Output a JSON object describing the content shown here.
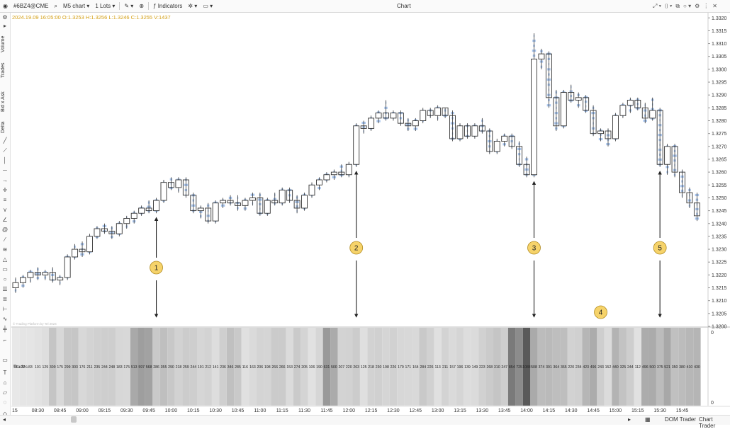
{
  "toolbar": {
    "symbol": "#6BZ4@CME",
    "chart_type": "M5 chart",
    "lots": "1 Lots",
    "indicators": "Indicators",
    "window_title": "Chart"
  },
  "left_toolbar": {
    "labels": [
      "Volume",
      "Trades",
      "Bid x Ask",
      "Delta"
    ]
  },
  "ohlc_line": "2024.19.09 16:05:00 O:1.3253 H:1.3256 L:1.3246 C:1.3255 V:1437",
  "watermark": "© Trading Platform by Tel 2024",
  "statusbar": {
    "dom_trader": "DOM Trader",
    "chart_trader": "Chart Trader"
  },
  "colors": {
    "candle_up_fill": "#ffffff",
    "candle_stroke": "#333333",
    "cluster": "#8fb4e8",
    "annotation_fill": "#f6d36a",
    "annotation_stroke": "#b08a20"
  },
  "chart_data": {
    "type": "candlestick",
    "y_ticks": [
      "1.3320",
      "1.3315",
      "1.3310",
      "1.3305",
      "1.3300",
      "1.3295",
      "1.3290",
      "1.3285",
      "1.3280",
      "1.3275",
      "1.3270",
      "1.3265",
      "1.3260",
      "1.3255",
      "1.3250",
      "1.3245",
      "1.3240",
      "1.3235",
      "1.3230",
      "1.3225",
      "1.3220",
      "1.3215",
      "1.3210",
      "1.3205",
      "1.3200"
    ],
    "ylim": [
      1.32,
      1.3322
    ],
    "x_ticks": [
      "15",
      "08:30",
      "08:45",
      "09:00",
      "09:15",
      "09:30",
      "09:45",
      "10:00",
      "10:15",
      "10:30",
      "10:45",
      "11:00",
      "11:15",
      "11:30",
      "11:45",
      "12:00",
      "12:15",
      "12:30",
      "12:45",
      "13:00",
      "13:15",
      "13:30",
      "13:45",
      "14:00",
      "14:15",
      "14:30",
      "14:45",
      "15:00",
      "15:15",
      "15:30",
      "15:45"
    ],
    "first_time": "08:15",
    "series_label": "Trades",
    "subpanel_ticks": [
      "0",
      "0"
    ],
    "candles": [
      {
        "t": "08:15",
        "o": 1.3215,
        "h": 1.3219,
        "l": 1.3213,
        "c": 1.3217,
        "tr": 55
      },
      {
        "t": "08:20",
        "o": 1.3217,
        "h": 1.322,
        "l": 1.3215,
        "c": 1.3219,
        "tr": 77
      },
      {
        "t": "08:25",
        "o": 1.3219,
        "h": 1.3222,
        "l": 1.3217,
        "c": 1.3221,
        "tr": 83
      },
      {
        "t": "08:30",
        "o": 1.3221,
        "h": 1.3223,
        "l": 1.3218,
        "c": 1.322,
        "tr": 101
      },
      {
        "t": "08:35",
        "o": 1.322,
        "h": 1.3222,
        "l": 1.3218,
        "c": 1.3221,
        "tr": 129
      },
      {
        "t": "08:40",
        "o": 1.3221,
        "h": 1.3223,
        "l": 1.3217,
        "c": 1.3218,
        "tr": 309
      },
      {
        "t": "08:45",
        "o": 1.3218,
        "h": 1.322,
        "l": 1.3216,
        "c": 1.3219,
        "tr": 175
      },
      {
        "t": "08:50",
        "o": 1.3219,
        "h": 1.3228,
        "l": 1.3218,
        "c": 1.3227,
        "tr": 299
      },
      {
        "t": "08:55",
        "o": 1.3227,
        "h": 1.3232,
        "l": 1.3226,
        "c": 1.323,
        "tr": 303
      },
      {
        "t": "09:00",
        "o": 1.323,
        "h": 1.3233,
        "l": 1.3227,
        "c": 1.3229,
        "tr": 176
      },
      {
        "t": "09:05",
        "o": 1.3229,
        "h": 1.3236,
        "l": 1.3228,
        "c": 1.3235,
        "tr": 211
      },
      {
        "t": "09:10",
        "o": 1.3235,
        "h": 1.3239,
        "l": 1.3234,
        "c": 1.3238,
        "tr": 235
      },
      {
        "t": "09:15",
        "o": 1.3238,
        "h": 1.324,
        "l": 1.3236,
        "c": 1.3237,
        "tr": 244
      },
      {
        "t": "09:20",
        "o": 1.3237,
        "h": 1.3239,
        "l": 1.3234,
        "c": 1.3236,
        "tr": 248
      },
      {
        "t": "09:25",
        "o": 1.3236,
        "h": 1.3241,
        "l": 1.3235,
        "c": 1.324,
        "tr": 183
      },
      {
        "t": "09:30",
        "o": 1.324,
        "h": 1.3243,
        "l": 1.3238,
        "c": 1.3242,
        "tr": 175
      },
      {
        "t": "09:35",
        "o": 1.3242,
        "h": 1.3245,
        "l": 1.324,
        "c": 1.3244,
        "tr": 513
      },
      {
        "t": "09:40",
        "o": 1.3244,
        "h": 1.3247,
        "l": 1.3243,
        "c": 1.3246,
        "tr": 597
      },
      {
        "t": "09:45",
        "o": 1.3246,
        "h": 1.3249,
        "l": 1.3244,
        "c": 1.3245,
        "tr": 568
      },
      {
        "t": "09:50",
        "o": 1.3245,
        "h": 1.325,
        "l": 1.3244,
        "c": 1.3249,
        "tr": 286
      },
      {
        "t": "09:55",
        "o": 1.3249,
        "h": 1.3257,
        "l": 1.3248,
        "c": 1.3256,
        "tr": 355
      },
      {
        "t": "10:00",
        "o": 1.3256,
        "h": 1.3258,
        "l": 1.3253,
        "c": 1.3254,
        "tr": 290
      },
      {
        "t": "10:05",
        "o": 1.3254,
        "h": 1.3258,
        "l": 1.3252,
        "c": 1.3257,
        "tr": 218
      },
      {
        "t": "10:10",
        "o": 1.3257,
        "h": 1.3258,
        "l": 1.325,
        "c": 1.3251,
        "tr": 259
      },
      {
        "t": "10:15",
        "o": 1.3251,
        "h": 1.3252,
        "l": 1.3244,
        "c": 1.3245,
        "tr": 244
      },
      {
        "t": "10:20",
        "o": 1.3245,
        "h": 1.3247,
        "l": 1.3242,
        "c": 1.3246,
        "tr": 191
      },
      {
        "t": "10:25",
        "o": 1.3246,
        "h": 1.3248,
        "l": 1.324,
        "c": 1.3241,
        "tr": 212
      },
      {
        "t": "10:30",
        "o": 1.3241,
        "h": 1.3249,
        "l": 1.324,
        "c": 1.3248,
        "tr": 141
      },
      {
        "t": "10:35",
        "o": 1.3248,
        "h": 1.325,
        "l": 1.3246,
        "c": 1.3249,
        "tr": 236
      },
      {
        "t": "10:40",
        "o": 1.3249,
        "h": 1.3251,
        "l": 1.3247,
        "c": 1.3248,
        "tr": 346
      },
      {
        "t": "10:45",
        "o": 1.3248,
        "h": 1.3251,
        "l": 1.3245,
        "c": 1.3247,
        "tr": 285
      },
      {
        "t": "10:50",
        "o": 1.3247,
        "h": 1.325,
        "l": 1.3245,
        "c": 1.3249,
        "tr": 116
      },
      {
        "t": "10:55",
        "o": 1.3249,
        "h": 1.3252,
        "l": 1.3247,
        "c": 1.325,
        "tr": 163
      },
      {
        "t": "11:00",
        "o": 1.325,
        "h": 1.3252,
        "l": 1.3243,
        "c": 1.3244,
        "tr": 206
      },
      {
        "t": "11:05",
        "o": 1.3244,
        "h": 1.325,
        "l": 1.3243,
        "c": 1.3249,
        "tr": 198
      },
      {
        "t": "11:10",
        "o": 1.3249,
        "h": 1.3252,
        "l": 1.3247,
        "c": 1.3248,
        "tr": 266
      },
      {
        "t": "11:15",
        "o": 1.3248,
        "h": 1.3254,
        "l": 1.3247,
        "c": 1.3253,
        "tr": 266
      },
      {
        "t": "11:20",
        "o": 1.3253,
        "h": 1.3254,
        "l": 1.3248,
        "c": 1.3249,
        "tr": 153
      },
      {
        "t": "11:25",
        "o": 1.3249,
        "h": 1.3251,
        "l": 1.3244,
        "c": 1.3246,
        "tr": 274
      },
      {
        "t": "11:30",
        "o": 1.3246,
        "h": 1.3252,
        "l": 1.3245,
        "c": 1.3251,
        "tr": 205
      },
      {
        "t": "11:35",
        "o": 1.3251,
        "h": 1.3256,
        "l": 1.325,
        "c": 1.3255,
        "tr": 106
      },
      {
        "t": "11:40",
        "o": 1.3255,
        "h": 1.3258,
        "l": 1.3253,
        "c": 1.3257,
        "tr": 190
      },
      {
        "t": "11:45",
        "o": 1.3257,
        "h": 1.326,
        "l": 1.3256,
        "c": 1.3259,
        "tr": 631
      },
      {
        "t": "11:50",
        "o": 1.3259,
        "h": 1.3261,
        "l": 1.3257,
        "c": 1.326,
        "tr": 500
      },
      {
        "t": "11:55",
        "o": 1.326,
        "h": 1.3263,
        "l": 1.3258,
        "c": 1.3259,
        "tr": 207
      },
      {
        "t": "12:00",
        "o": 1.3259,
        "h": 1.3264,
        "l": 1.3258,
        "c": 1.3263,
        "tr": 220
      },
      {
        "t": "12:05",
        "o": 1.3263,
        "h": 1.3279,
        "l": 1.3262,
        "c": 1.3278,
        "tr": 263
      },
      {
        "t": "12:10",
        "o": 1.3278,
        "h": 1.328,
        "l": 1.3275,
        "c": 1.3277,
        "tr": 125
      },
      {
        "t": "12:15",
        "o": 1.3277,
        "h": 1.3282,
        "l": 1.3276,
        "c": 1.3281,
        "tr": 218
      },
      {
        "t": "12:20",
        "o": 1.3281,
        "h": 1.3284,
        "l": 1.3279,
        "c": 1.3283,
        "tr": 230
      },
      {
        "t": "12:25",
        "o": 1.3283,
        "h": 1.3288,
        "l": 1.328,
        "c": 1.3281,
        "tr": 198
      },
      {
        "t": "12:30",
        "o": 1.3281,
        "h": 1.3284,
        "l": 1.328,
        "c": 1.3283,
        "tr": 226
      },
      {
        "t": "12:35",
        "o": 1.3283,
        "h": 1.3284,
        "l": 1.3278,
        "c": 1.3279,
        "tr": 179
      },
      {
        "t": "12:40",
        "o": 1.3279,
        "h": 1.3281,
        "l": 1.3276,
        "c": 1.3278,
        "tr": 171
      },
      {
        "t": "12:45",
        "o": 1.3278,
        "h": 1.3281,
        "l": 1.3276,
        "c": 1.328,
        "tr": 164
      },
      {
        "t": "12:50",
        "o": 1.328,
        "h": 1.3285,
        "l": 1.3279,
        "c": 1.3284,
        "tr": 284
      },
      {
        "t": "12:55",
        "o": 1.3284,
        "h": 1.3285,
        "l": 1.3281,
        "c": 1.3282,
        "tr": 226
      },
      {
        "t": "13:00",
        "o": 1.3282,
        "h": 1.3286,
        "l": 1.328,
        "c": 1.3285,
        "tr": 113
      },
      {
        "t": "13:05",
        "o": 1.3285,
        "h": 1.3285,
        "l": 1.3281,
        "c": 1.3282,
        "tr": 211
      },
      {
        "t": "13:10",
        "o": 1.3282,
        "h": 1.3284,
        "l": 1.3272,
        "c": 1.3273,
        "tr": 157
      },
      {
        "t": "13:15",
        "o": 1.3273,
        "h": 1.3279,
        "l": 1.3272,
        "c": 1.3278,
        "tr": 196
      },
      {
        "t": "13:20",
        "o": 1.3278,
        "h": 1.3279,
        "l": 1.3273,
        "c": 1.3274,
        "tr": 139
      },
      {
        "t": "13:25",
        "o": 1.3274,
        "h": 1.3279,
        "l": 1.3273,
        "c": 1.3278,
        "tr": 149
      },
      {
        "t": "13:30",
        "o": 1.3278,
        "h": 1.3281,
        "l": 1.3275,
        "c": 1.3276,
        "tr": 223
      },
      {
        "t": "13:35",
        "o": 1.3276,
        "h": 1.3277,
        "l": 1.3267,
        "c": 1.3268,
        "tr": 268
      },
      {
        "t": "13:40",
        "o": 1.3268,
        "h": 1.3273,
        "l": 1.3267,
        "c": 1.3272,
        "tr": 310
      },
      {
        "t": "13:45",
        "o": 1.3272,
        "h": 1.3275,
        "l": 1.327,
        "c": 1.3274,
        "tr": 247
      },
      {
        "t": "13:50",
        "o": 1.3274,
        "h": 1.3275,
        "l": 1.3269,
        "c": 1.327,
        "tr": 854
      },
      {
        "t": "13:55",
        "o": 1.327,
        "h": 1.3272,
        "l": 1.3262,
        "c": 1.3263,
        "tr": 725
      },
      {
        "t": "14:00",
        "o": 1.3263,
        "h": 1.3266,
        "l": 1.3258,
        "c": 1.3259,
        "tr": 1088
      },
      {
        "t": "14:05",
        "o": 1.3259,
        "h": 1.3314,
        "l": 1.3258,
        "c": 1.3304,
        "tr": 508
      },
      {
        "t": "14:10",
        "o": 1.3304,
        "h": 1.3308,
        "l": 1.33,
        "c": 1.3306,
        "tr": 374
      },
      {
        "t": "14:15",
        "o": 1.3306,
        "h": 1.3307,
        "l": 1.3285,
        "c": 1.3289,
        "tr": 391
      },
      {
        "t": "14:20",
        "o": 1.3289,
        "h": 1.3292,
        "l": 1.3276,
        "c": 1.3278,
        "tr": 364
      },
      {
        "t": "14:25",
        "o": 1.3278,
        "h": 1.3292,
        "l": 1.3277,
        "c": 1.3291,
        "tr": 365
      },
      {
        "t": "14:30",
        "o": 1.3291,
        "h": 1.3294,
        "l": 1.3287,
        "c": 1.3288,
        "tr": 220
      },
      {
        "t": "14:35",
        "o": 1.3288,
        "h": 1.3291,
        "l": 1.3285,
        "c": 1.3289,
        "tr": 234
      },
      {
        "t": "14:40",
        "o": 1.3289,
        "h": 1.329,
        "l": 1.3283,
        "c": 1.3284,
        "tr": 423
      },
      {
        "t": "14:45",
        "o": 1.3284,
        "h": 1.3286,
        "l": 1.3274,
        "c": 1.3275,
        "tr": 496
      },
      {
        "t": "14:50",
        "o": 1.3275,
        "h": 1.3277,
        "l": 1.3272,
        "c": 1.3276,
        "tr": 243
      },
      {
        "t": "14:55",
        "o": 1.3276,
        "h": 1.3277,
        "l": 1.327,
        "c": 1.3273,
        "tr": 152
      },
      {
        "t": "15:00",
        "o": 1.3273,
        "h": 1.3283,
        "l": 1.3272,
        "c": 1.3282,
        "tr": 440
      },
      {
        "t": "15:05",
        "o": 1.3282,
        "h": 1.3287,
        "l": 1.3281,
        "c": 1.3286,
        "tr": 325
      },
      {
        "t": "15:10",
        "o": 1.3286,
        "h": 1.3289,
        "l": 1.3283,
        "c": 1.3288,
        "tr": 244
      },
      {
        "t": "15:15",
        "o": 1.3288,
        "h": 1.3289,
        "l": 1.3284,
        "c": 1.3285,
        "tr": 112
      },
      {
        "t": "15:20",
        "o": 1.3285,
        "h": 1.3287,
        "l": 1.3279,
        "c": 1.3281,
        "tr": 496
      },
      {
        "t": "15:25",
        "o": 1.3281,
        "h": 1.3289,
        "l": 1.328,
        "c": 1.3284,
        "tr": 500
      },
      {
        "t": "15:30",
        "o": 1.3284,
        "h": 1.3285,
        "l": 1.3262,
        "c": 1.3263,
        "tr": 375
      },
      {
        "t": "15:35",
        "o": 1.3263,
        "h": 1.3271,
        "l": 1.3259,
        "c": 1.327,
        "tr": 521
      },
      {
        "t": "15:40",
        "o": 1.327,
        "h": 1.3271,
        "l": 1.3258,
        "c": 1.326,
        "tr": 350
      },
      {
        "t": "15:45",
        "o": 1.326,
        "h": 1.3261,
        "l": 1.325,
        "c": 1.3252,
        "tr": 380
      },
      {
        "t": "15:50",
        "o": 1.3252,
        "h": 1.3254,
        "l": 1.3246,
        "c": 1.3248,
        "tr": 410
      },
      {
        "t": "15:55",
        "o": 1.3248,
        "h": 1.3252,
        "l": 1.3241,
        "c": 1.3243,
        "tr": 430
      }
    ],
    "annotations": [
      {
        "label": "1",
        "t": "09:50"
      },
      {
        "label": "2",
        "t": "12:05"
      },
      {
        "label": "3",
        "t": "14:05"
      },
      {
        "label": "4",
        "t": "14:50"
      },
      {
        "label": "5",
        "t": "15:30"
      }
    ]
  }
}
